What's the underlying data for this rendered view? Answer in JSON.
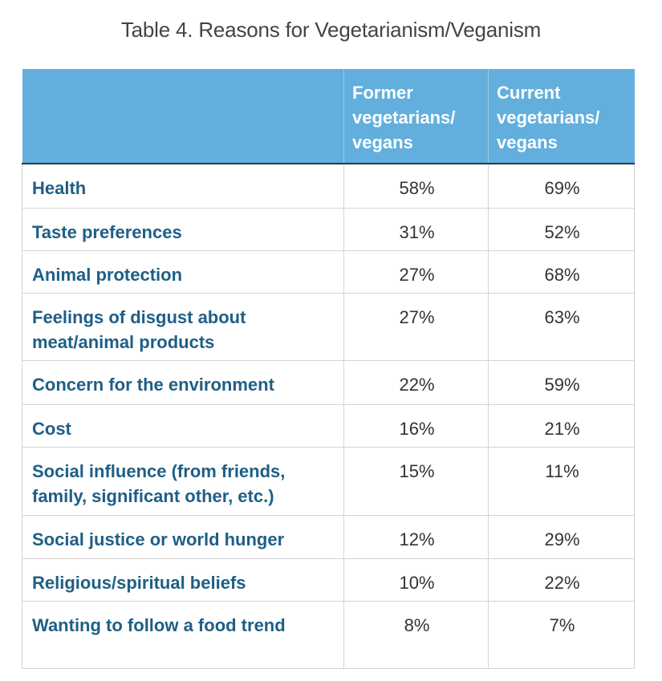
{
  "chart_data": {
    "type": "table",
    "title": "Table 4. Reasons for Vegetarianism/Veganism",
    "columns": [
      "",
      "Former vegetarians/ vegans",
      "Current vegetarians/ vegans"
    ],
    "rows": [
      {
        "reason": "Health",
        "former": "58%",
        "current": "69%"
      },
      {
        "reason": "Taste preferences",
        "former": "31%",
        "current": "52%"
      },
      {
        "reason": "Animal protection",
        "former": "27%",
        "current": "68%"
      },
      {
        "reason": "Feelings of disgust about meat/animal products",
        "former": "27%",
        "current": "63%"
      },
      {
        "reason": "Concern for the environment",
        "former": "22%",
        "current": "59%"
      },
      {
        "reason": "Cost",
        "former": "16%",
        "current": "21%"
      },
      {
        "reason": "Social influence (from friends, family, significant other, etc.)",
        "former": "15%",
        "current": "11%"
      },
      {
        "reason": "Social justice or world hunger",
        "former": "12%",
        "current": "29%"
      },
      {
        "reason": "Religious/spiritual beliefs",
        "former": "10%",
        "current": "22%"
      },
      {
        "reason": "Wanting to follow a food trend",
        "former": "8%",
        "current": "7%"
      }
    ],
    "colors": {
      "header": "#62afdd",
      "label": "#1e5f86"
    }
  }
}
